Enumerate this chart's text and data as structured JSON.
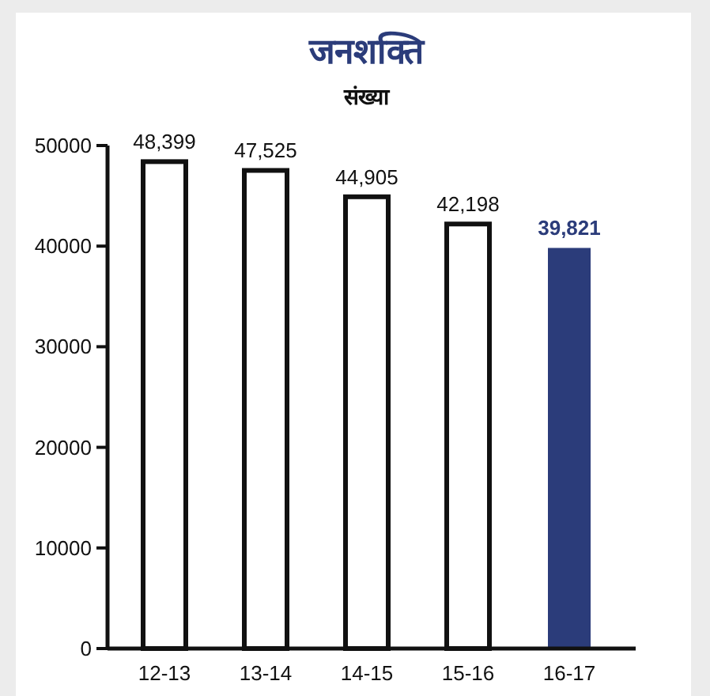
{
  "chart_data": {
    "type": "bar",
    "title": "जनशक्ति",
    "subtitle": "संख्या",
    "categories": [
      "12-13",
      "13-14",
      "14-15",
      "15-16",
      "16-17"
    ],
    "values": [
      48399,
      47525,
      44905,
      42198,
      39821
    ],
    "colors": [
      "#ffffff",
      "#ffffff",
      "#ffffff",
      "#ffffff",
      "#2b3c7a"
    ],
    "value_labels": [
      "48,399",
      "47,525",
      "44,905",
      "42,198",
      "39,821"
    ],
    "ylim": [
      0,
      50000
    ],
    "yticks": [
      0,
      10000,
      20000,
      30000,
      40000,
      50000
    ],
    "grid": false
  }
}
